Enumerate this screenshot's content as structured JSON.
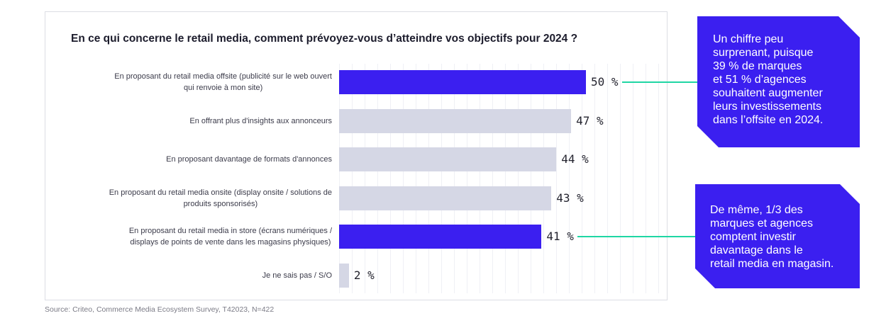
{
  "chart_data": {
    "type": "bar",
    "orientation": "horizontal",
    "title": "En ce qui concerne le retail media, comment prévoyez-vous d’atteindre vos objectifs pour 2024 ?",
    "categories": [
      "En proposant du retail media offsite (publicité sur le web ouvert\nqui renvoie à mon site)",
      "En offrant plus d'insights aux annonceurs",
      "En proposant davantage de formats d'annonces",
      "En proposant du retail media onsite (display onsite / solutions de\nproduits sponsorisés)",
      "En proposant du retail media in store (écrans numériques /\ndisplays de points de vente dans les magasins physiques)",
      "Je ne sais pas / S/O"
    ],
    "values": [
      50,
      47,
      44,
      43,
      41,
      2
    ],
    "value_labels": [
      "50 %",
      "47 %",
      "44 %",
      "43 %",
      "41 %",
      "2 %"
    ],
    "unit": "%",
    "highlighted": [
      true,
      false,
      false,
      false,
      true,
      false
    ],
    "xlabel": "",
    "ylabel": "",
    "grid": true,
    "annotations": [
      {
        "bar_index": 0,
        "text": "Un chiffre peu\nsurprenant, puisque\n39 % de marques\net 51 % d’agences\nsouhaitent augmenter\nleurs investissements\ndans l’offsite en 2024."
      },
      {
        "bar_index": 4,
        "text": "De même, 1/3 des\nmarques et agences\ncomptent investir\ndavantage dans le\nretail media en magasin."
      }
    ],
    "source": "Source: Criteo, Commerce Media Ecosystem Survey, T42023, N=422"
  },
  "colors": {
    "highlight": "#3b1ff0",
    "bar_default": "#d5d7e5",
    "connector": "#1fd6a4",
    "callout_bg": "#3b1ff0",
    "callout_text": "#ffffff"
  }
}
